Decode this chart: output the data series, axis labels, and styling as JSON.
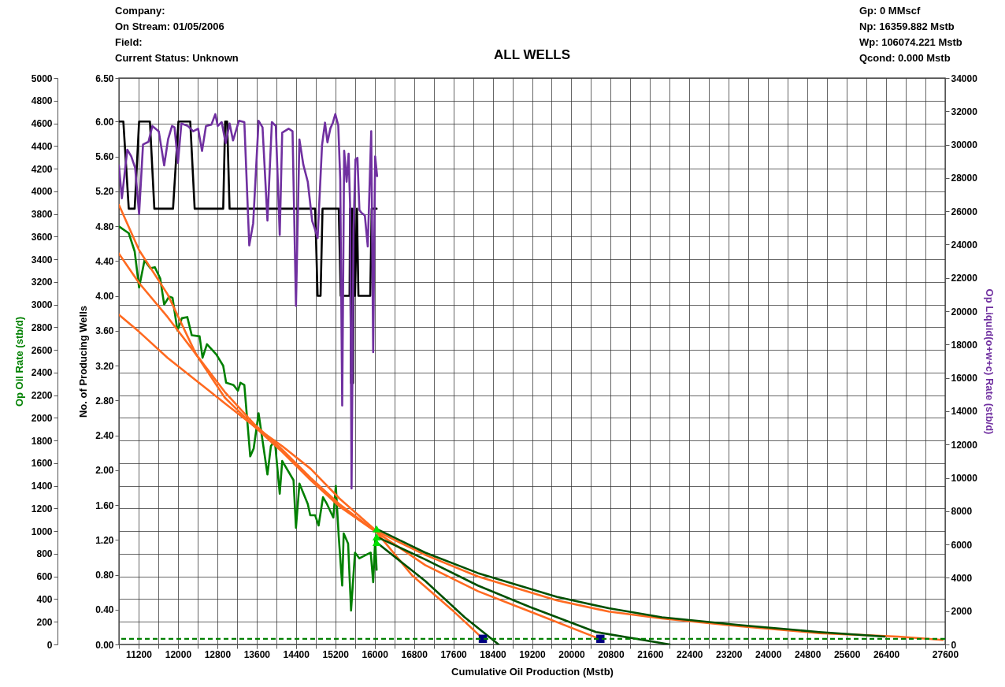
{
  "chart_data": {
    "type": "line",
    "title": "ALL WELLS",
    "xlabel": "Cumulative Oil Production (Mstb)",
    "ylabel": "Op Oil Rate (stb/d)",
    "y2label": "Op Liquid(o+w+c) Rate (stb/d)",
    "y3label": "No. of Producing Wells",
    "annotations": [
      "Company:",
      "On Stream: 01/05/2006",
      "Field:",
      "Current Status: Unknown",
      "Gp: 0 MMscf",
      "Np: 16359.882 Mstb",
      "Wp: 106074.221 Mstb",
      "Qcond: 0.000 Mstb"
    ],
    "xlim": [
      10800,
      27600
    ],
    "xticks": [
      {
        "value": 10800,
        "label": null
      },
      11200,
      {
        "value": 11600,
        "label": null
      },
      12000,
      {
        "value": 12400,
        "label": null
      },
      12800,
      {
        "value": 13200,
        "label": null
      },
      13600,
      {
        "value": 14000,
        "label": null
      },
      14400,
      {
        "value": 14800,
        "label": null
      },
      15200,
      {
        "value": 15600,
        "label": null
      },
      16000,
      {
        "value": 16400,
        "label": null
      },
      16800,
      {
        "value": 17200,
        "label": null
      },
      17600,
      {
        "value": 18000,
        "label": null
      },
      18400,
      {
        "value": 18800,
        "label": null
      },
      19200,
      {
        "value": 19600,
        "label": null
      },
      20000,
      {
        "value": 20400,
        "label": null
      },
      20800,
      {
        "value": 21200,
        "label": null
      },
      21600,
      {
        "value": 22000,
        "label": null
      },
      22400,
      {
        "value": 22800,
        "label": null
      },
      23200,
      {
        "value": 23600,
        "label": null
      },
      24000,
      {
        "value": 24400,
        "label": null
      },
      24800,
      {
        "value": 25200,
        "label": null
      },
      25600,
      {
        "value": 26000,
        "label": null
      },
      26400,
      {
        "value": 26800,
        "label": null
      },
      {
        "value": 27200,
        "label": null
      },
      27600
    ],
    "ylim": [
      0,
      5000
    ],
    "yticks": [
      0,
      200,
      400,
      600,
      800,
      1000,
      1200,
      1400,
      1600,
      1800,
      2000,
      2200,
      2400,
      2600,
      2800,
      3000,
      3200,
      3400,
      3600,
      3800,
      4000,
      4200,
      4400,
      4600,
      4800,
      5000
    ],
    "y2lim": [
      0,
      34000
    ],
    "y2ticks": [
      0,
      2000,
      4000,
      6000,
      8000,
      10000,
      12000,
      14000,
      16000,
      18000,
      20000,
      22000,
      24000,
      26000,
      28000,
      30000,
      32000,
      34000
    ],
    "y3lim": [
      0,
      6.5
    ],
    "y3ticks": [
      {
        "value": 0,
        "label": "0.00"
      },
      {
        "value": 0.4,
        "label": "0.40"
      },
      {
        "value": 0.8,
        "label": "0.80"
      },
      {
        "value": 1.2,
        "label": "1.20"
      },
      {
        "value": 1.6,
        "label": "1.60"
      },
      {
        "value": 2,
        "label": "2.00"
      },
      {
        "value": 2.4,
        "label": "2.40"
      },
      {
        "value": 2.8,
        "label": "2.80"
      },
      {
        "value": 3.2,
        "label": "3.20"
      },
      {
        "value": 3.6,
        "label": "3.60"
      },
      {
        "value": 4,
        "label": "4.00"
      },
      {
        "value": 4.4,
        "label": "4.40"
      },
      {
        "value": 4.8,
        "label": "4.80"
      },
      {
        "value": 5.2,
        "label": "5.20"
      },
      {
        "value": 5.6,
        "label": "5.60"
      },
      {
        "value": 6,
        "label": "6.00"
      },
      {
        "value": 6.5,
        "label": "6.50"
      }
    ],
    "grid": true,
    "ref_lines": [
      {
        "axis": "y",
        "value": 50,
        "color": "#008000",
        "line_style": "dashed"
      }
    ],
    "series": [
      {
        "color": "#008000",
        "x": [
          10800,
          11000,
          11120,
          11210,
          11320,
          11440,
          11530,
          11640,
          11720,
          11820,
          11890,
          11990,
          12080,
          12190,
          12280,
          12440,
          12500,
          12590,
          12780,
          12920,
          12980,
          13130,
          13220,
          13270,
          13350,
          13470,
          13540,
          13640,
          13820,
          13890,
          13970,
          14070,
          14120,
          14350,
          14400,
          14470,
          14640,
          14690,
          14790,
          14860,
          14950,
          15030,
          15160,
          15210,
          15270,
          15340,
          15370,
          15460,
          15520,
          15600,
          15690,
          15870,
          15920,
          15970,
          16010,
          16040
        ],
        "values": [
          3690,
          3630,
          3470,
          3150,
          3390,
          3320,
          3330,
          3230,
          3000,
          3070,
          3060,
          2770,
          2880,
          2890,
          2730,
          2720,
          2530,
          2650,
          2560,
          2460,
          2310,
          2290,
          2240,
          2310,
          2290,
          1660,
          1730,
          2040,
          1500,
          1750,
          1800,
          1330,
          1620,
          1450,
          1030,
          1420,
          1240,
          1140,
          1140,
          1050,
          1300,
          1240,
          1120,
          1400,
          950,
          520,
          980,
          890,
          300,
          810,
          760,
          800,
          810,
          550,
          920,
          660
        ]
      },
      {
        "color": "#000000",
        "axis": "y3",
        "line_style": "solid",
        "x": [
          10800,
          10890,
          11000,
          11120,
          11210,
          11430,
          11520,
          11900,
          12010,
          12250,
          12340,
          12920,
          12960,
          13000,
          13050,
          14790,
          14840,
          14900,
          14940,
          15270,
          15310,
          15490,
          15500,
          15520,
          15540,
          15560,
          15580,
          15600,
          15640,
          15670,
          15910,
          15940,
          16040
        ],
        "values": [
          6,
          6,
          5,
          5,
          6,
          6,
          5,
          5,
          6,
          6,
          5,
          5,
          6,
          6,
          5,
          5,
          4,
          4,
          5,
          5,
          4,
          4,
          5,
          3,
          5,
          3,
          5,
          4,
          5,
          4,
          4,
          5,
          5
        ]
      },
      {
        "color": "#7030a0",
        "axis": "y2",
        "x": [
          10800,
          10860,
          10970,
          11050,
          11130,
          11210,
          11290,
          11400,
          11480,
          11610,
          11720,
          11800,
          11880,
          11930,
          12000,
          12070,
          12200,
          12310,
          12410,
          12490,
          12570,
          12680,
          12760,
          12810,
          12890,
          12970,
          13050,
          13120,
          13240,
          13350,
          13450,
          13530,
          13640,
          13720,
          13820,
          13910,
          13990,
          14070,
          14120,
          14250,
          14330,
          14400,
          14470,
          14550,
          14640,
          14730,
          14780,
          14840,
          14930,
          14990,
          15040,
          15100,
          15150,
          15200,
          15260,
          15300,
          15340,
          15380,
          15430,
          15470,
          15500,
          15530,
          15570,
          15610,
          15650,
          15690,
          15730,
          15800,
          15860,
          15930,
          15970,
          16010,
          16050
        ],
        "values": [
          28750,
          26780,
          29700,
          29300,
          28600,
          25840,
          30010,
          30170,
          31120,
          30800,
          28750,
          30330,
          31120,
          31040,
          28910,
          31270,
          31120,
          30800,
          30960,
          29620,
          31120,
          31200,
          31830,
          31120,
          31350,
          30090,
          31270,
          30250,
          31430,
          31350,
          23950,
          25290,
          31430,
          31040,
          25440,
          31350,
          31120,
          24580,
          30720,
          30960,
          30800,
          20320,
          30310,
          28790,
          27770,
          25410,
          24990,
          24390,
          29970,
          31320,
          30140,
          30980,
          31320,
          31830,
          31150,
          27940,
          14340,
          29630,
          27770,
          29460,
          26420,
          9360,
          24900,
          29120,
          29210,
          26080,
          25910,
          25750,
          23890,
          30810,
          17550,
          29290,
          28110
        ]
      },
      {
        "color": "#ff6a20",
        "x": [
          10800,
          11210,
          11790,
          12370,
          12950,
          13540,
          14120,
          14700,
          15280,
          16040,
          16760,
          17560,
          18180
        ],
        "values": [
          3880,
          3480,
          3090,
          2560,
          2180,
          1930,
          1700,
          1450,
          1220,
          990,
          610,
          310,
          60
        ]
      },
      {
        "color": "#ff6a20",
        "x": [
          10800,
          11210,
          11790,
          12370,
          12950,
          13540,
          14120,
          14700,
          15280,
          16040,
          17030,
          18100,
          19160,
          20510
        ],
        "values": [
          3450,
          3190,
          2890,
          2560,
          2230,
          1950,
          1720,
          1470,
          1240,
          990,
          700,
          470,
          290,
          60
        ]
      },
      {
        "color": "#ff6a20",
        "x": [
          10800,
          11210,
          11790,
          12370,
          12950,
          13540,
          14120,
          14700,
          15280,
          16040,
          17030,
          18100,
          19700,
          20760,
          21840,
          23440,
          25040,
          26640,
          27550
        ],
        "values": [
          2910,
          2760,
          2530,
          2330,
          2130,
          1930,
          1750,
          1550,
          1290,
          1000,
          790,
          600,
          390,
          290,
          230,
          160,
          100,
          70,
          40
        ]
      },
      {
        "color": "#005000",
        "x": [
          16040,
          17030,
          17830,
          18520
        ],
        "values": [
          900,
          560,
          240,
          0
        ]
      },
      {
        "color": "#005000",
        "x": [
          16040,
          17030,
          18100,
          19160,
          20500,
          22000
        ],
        "values": [
          950,
          750,
          520,
          330,
          110,
          0
        ]
      },
      {
        "color": "#005000",
        "x": [
          16040,
          17030,
          18100,
          19700,
          20760,
          21840,
          23440,
          25040,
          26370
        ],
        "values": [
          1020,
          810,
          630,
          420,
          320,
          240,
          170,
          110,
          70
        ]
      },
      {
        "type": "scatter",
        "marker": "triangle",
        "color": "#00e000",
        "x": [
          16040,
          16040,
          16040
        ],
        "values": [
          1020,
          950,
          900
        ]
      },
      {
        "type": "scatter",
        "marker": "square",
        "color": "#000080",
        "x": [
          18200,
          20590
        ],
        "values": [
          50,
          50
        ]
      }
    ]
  }
}
